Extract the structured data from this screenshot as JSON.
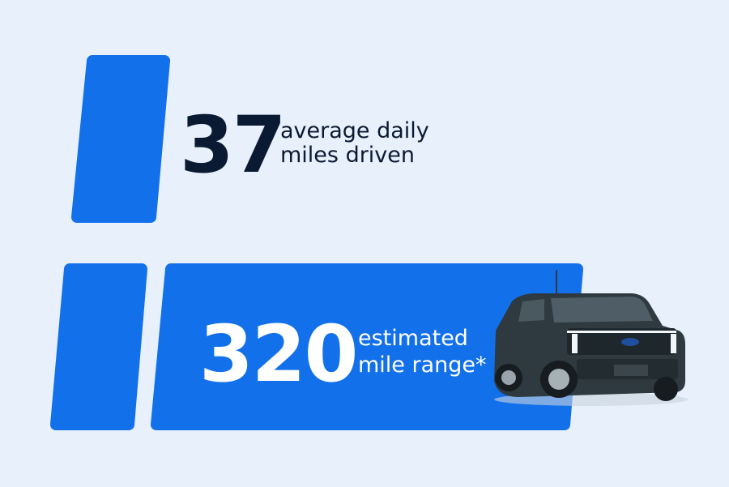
{
  "stats": [
    {
      "number": 37,
      "label_lines": [
        "average daily",
        "miles driven"
      ]
    },
    {
      "number": 320,
      "label_lines": [
        "estimated",
        "mile range*"
      ]
    }
  ]
}
